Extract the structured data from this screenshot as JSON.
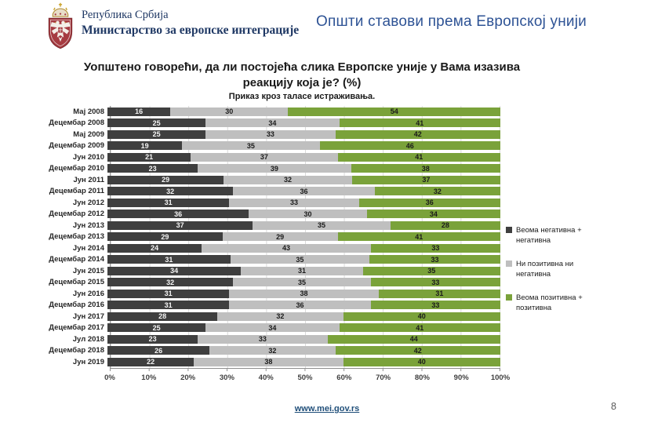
{
  "header": {
    "country": "Република Србија",
    "ministry": "Министарство за европске интеграције",
    "page_title": "Општи ставови према Европској унији"
  },
  "chart": {
    "title_line1": "Уопштено говорећи, да ли постојећа слика Европске уније у Вама изазива",
    "title_line2": "реакцију која је? (%)",
    "subtitle": "Приказ кроз таласе истраживања."
  },
  "chart_data": {
    "type": "bar",
    "orientation": "horizontal",
    "stacked_percent": true,
    "grid": true,
    "legend_position": "right",
    "xlim": [
      0,
      100
    ],
    "x_ticks": [
      "0%",
      "10%",
      "20%",
      "30%",
      "40%",
      "50%",
      "60%",
      "70%",
      "80%",
      "90%",
      "100%"
    ],
    "categories": [
      "Мај 2008",
      "Децембар 2008",
      "Мај 2009",
      "Децембар 2009",
      "Јун 2010",
      "Децембар 2010",
      "Јун 2011",
      "Децембар 2011",
      "Јун 2012",
      "Децембар 2012",
      "Јун 2013",
      "Децембар 2013",
      "Јун 2014",
      "Децембар 2014",
      "Јун 2015",
      "Децембар 2015",
      "Јун 2016",
      "Децембар 2016",
      "Јун 2017",
      "Децембар 2017",
      "Јул 2018",
      "Децембар 2018",
      "Јун 2019"
    ],
    "series": [
      {
        "name": "Веома негативна + негативна",
        "color": "#3f3f3f",
        "label_color": "#f5f5f5",
        "values": [
          16,
          25,
          25,
          19,
          21,
          23,
          29,
          32,
          31,
          36,
          37,
          29,
          24,
          31,
          34,
          32,
          31,
          31,
          28,
          25,
          23,
          26,
          22
        ]
      },
      {
        "name": "Ни позитивна ни негативна",
        "color": "#bfbfbf",
        "label_color": "#1a1a1a",
        "values": [
          30,
          34,
          33,
          35,
          37,
          39,
          32,
          36,
          33,
          30,
          35,
          29,
          43,
          35,
          31,
          35,
          38,
          36,
          32,
          34,
          33,
          32,
          38
        ]
      },
      {
        "name": "Веома позитивна + позитивна",
        "color": "#7aa23a",
        "label_color": "#1a1a1a",
        "values": [
          54,
          41,
          42,
          46,
          41,
          38,
          37,
          32,
          36,
          34,
          28,
          41,
          33,
          33,
          35,
          33,
          31,
          33,
          40,
          41,
          44,
          42,
          40
        ]
      }
    ]
  },
  "footer": {
    "link": "www.mei.gov.rs",
    "page_number": "8"
  }
}
